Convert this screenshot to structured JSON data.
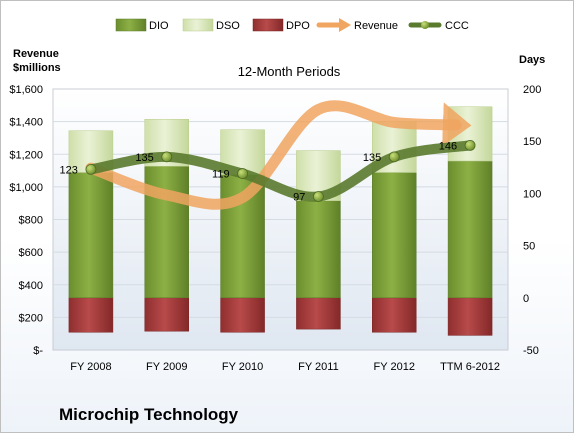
{
  "chart_data": {
    "type": "bar",
    "subtitle": "12-Month Periods",
    "company": "Microchip Technology",
    "left_axis": {
      "label_line1": "Revenue",
      "label_line2": "$millions",
      "ylim": [
        0,
        1600
      ],
      "ticks": [
        {
          "value": 0,
          "label": "$-"
        },
        {
          "value": 200,
          "label": "$200"
        },
        {
          "value": 400,
          "label": "$400"
        },
        {
          "value": 600,
          "label": "$600"
        },
        {
          "value": 800,
          "label": "$800"
        },
        {
          "value": 1000,
          "label": "$1,000"
        },
        {
          "value": 1200,
          "label": "$1,200"
        },
        {
          "value": 1400,
          "label": "$1,400"
        },
        {
          "value": 1600,
          "label": "$1,600"
        }
      ]
    },
    "right_axis": {
      "label": "Days",
      "ylim": [
        -50,
        200
      ],
      "ticks": [
        {
          "value": -50,
          "label": "-50"
        },
        {
          "value": 0,
          "label": "0"
        },
        {
          "value": 50,
          "label": "50"
        },
        {
          "value": 100,
          "label": "100"
        },
        {
          "value": 150,
          "label": "150"
        },
        {
          "value": 200,
          "label": "200"
        }
      ]
    },
    "categories": [
      "FY 2008",
      "FY 2009",
      "FY 2010",
      "FY 2011",
      "FY 2012",
      "TTM 6-2012"
    ],
    "series": [
      {
        "name": "DIO",
        "axis": "days",
        "values": [
          120,
          126,
          118,
          93,
          120,
          131
        ],
        "color": "#7a9c36"
      },
      {
        "name": "DSO",
        "axis": "days",
        "values": [
          40,
          45,
          43,
          48,
          49,
          52
        ],
        "color": "#d7e4bc"
      },
      {
        "name": "DPO",
        "axis": "days",
        "values": [
          -33,
          -32,
          -33,
          -30,
          -33,
          -36
        ],
        "color": "#a63c3c"
      },
      {
        "name": "Revenue",
        "axis": "revenue",
        "values": [
          1115,
          950,
          935,
          1475,
          1395,
          1380
        ],
        "color": "#f0a560"
      },
      {
        "name": "CCC",
        "axis": "days",
        "values": [
          123,
          135,
          119,
          97,
          135,
          146
        ],
        "color": "#5a7a2e"
      }
    ],
    "data_labels": [
      "123",
      "135",
      "119",
      "97",
      "135",
      "146"
    ],
    "legend_position": "top"
  }
}
